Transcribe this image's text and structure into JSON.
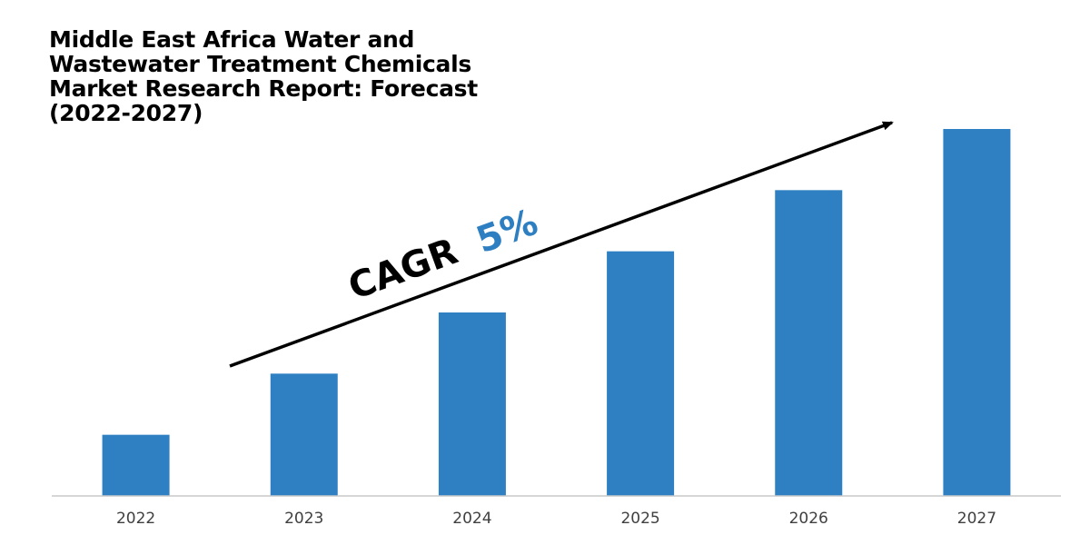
{
  "title_lines": [
    "Middle East Africa Water and",
    "Wastewater Treatment Chemicals",
    "Market Research Report: Forecast",
    "(2022-2027)"
  ],
  "annotation": {
    "label": "CAGR",
    "value": "5%",
    "label_color": "#000000",
    "value_color": "#2e7fc1"
  },
  "colors": {
    "bar": "#2e80c2",
    "axis": "#c9c9c9",
    "arrow": "#000000"
  },
  "chart_data": {
    "type": "bar",
    "title": "Middle East Africa Water and Wastewater Treatment Chemicals Market Research Report: Forecast (2022-2027)",
    "categories": [
      "2022",
      "2023",
      "2024",
      "2025",
      "2026",
      "2027"
    ],
    "values": [
      1,
      2,
      3,
      4,
      5,
      6
    ],
    "ylim": [
      0,
      6
    ],
    "xlabel": "",
    "ylabel": "",
    "grid": false,
    "annotations": [
      "CAGR 5%"
    ]
  }
}
